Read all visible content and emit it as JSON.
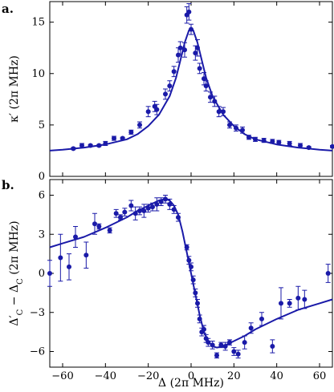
{
  "colors": {
    "data": "#1a1aa8",
    "axes": "#000000"
  },
  "chart_data": [
    {
      "type": "scatter",
      "panel_label": "a.",
      "ylabel": "κ′ (2π MHz)",
      "xlabel": "",
      "xlim": [
        -66,
        66
      ],
      "ylim": [
        0,
        17
      ],
      "yticks": [
        0,
        5,
        10,
        15
      ],
      "xticks": [
        -60,
        -40,
        -20,
        0,
        20,
        40,
        60
      ],
      "show_xtick_labels": false,
      "grid": false,
      "series": [
        {
          "points": [
            [
              -55,
              2.7,
              0.1
            ],
            [
              -51,
              3.0,
              0.2
            ],
            [
              -47,
              3.0,
              0.1
            ],
            [
              -43,
              3.0,
              0.1
            ],
            [
              -40,
              3.2,
              0.2
            ],
            [
              -36,
              3.7,
              0.2
            ],
            [
              -32,
              3.7,
              0.1
            ],
            [
              -28,
              4.3,
              0.2
            ],
            [
              -24,
              5.0,
              0.3
            ],
            [
              -20,
              6.3,
              0.5
            ],
            [
              -17,
              6.8,
              0.5
            ],
            [
              -16,
              6.5,
              0.5
            ],
            [
              -12,
              8.0,
              0.5
            ],
            [
              -10,
              8.8,
              0.5
            ],
            [
              -8,
              10.2,
              0.5
            ],
            [
              -6,
              11.8,
              0.7
            ],
            [
              -5,
              12.5,
              0.6
            ],
            [
              -3,
              12.3,
              0.7
            ],
            [
              -2,
              15.7,
              0.8
            ],
            [
              -1,
              16.0,
              0.8
            ],
            [
              0,
              14.3,
              0.5
            ],
            [
              2,
              12.0,
              0.7
            ],
            [
              3,
              12.5,
              0.8
            ],
            [
              4,
              10.5,
              0.5
            ],
            [
              6,
              9.5,
              0.6
            ],
            [
              7,
              8.8,
              0.5
            ],
            [
              9,
              7.7,
              0.5
            ],
            [
              11,
              7.3,
              0.5
            ],
            [
              13,
              6.3,
              0.5
            ],
            [
              15,
              6.3,
              0.4
            ],
            [
              18,
              5.0,
              0.3
            ],
            [
              21,
              4.7,
              0.3
            ],
            [
              24,
              4.5,
              0.3
            ],
            [
              27,
              3.8,
              0.2
            ],
            [
              30,
              3.6,
              0.2
            ],
            [
              34,
              3.5,
              0.2
            ],
            [
              38,
              3.4,
              0.2
            ],
            [
              41,
              3.3,
              0.2
            ],
            [
              46,
              3.2,
              0.2
            ],
            [
              51,
              3.0,
              0.2
            ],
            [
              55,
              2.8,
              0.1
            ],
            [
              66,
              2.9,
              0.1
            ]
          ]
        },
        {
          "fit_curve": {
            "x": [
              -66,
              -60,
              -50,
              -40,
              -30,
              -25,
              -20,
              -15,
              -10,
              -7,
              -5,
              -3,
              -1,
              0,
              1,
              3,
              5,
              7,
              10,
              15,
              20,
              25,
              30,
              40,
              50,
              60,
              66
            ],
            "y": [
              2.5,
              2.6,
              2.8,
              3.1,
              3.6,
              4.1,
              4.9,
              6.0,
              7.8,
              9.6,
              11.3,
              13.0,
              14.2,
              14.4,
              14.2,
              13.0,
              11.3,
              9.6,
              7.8,
              6.0,
              4.9,
              4.1,
              3.6,
              3.1,
              2.8,
              2.6,
              2.5
            ]
          }
        }
      ]
    },
    {
      "type": "scatter",
      "panel_label": "b.",
      "ylabel": "Δ′C − ΔC (2π MHz)",
      "ylabel_parts": {
        "delta": "Δ",
        "prime": "′",
        "C1": "C",
        "minus": " − ",
        "C2": "C",
        "units": " (2π MHz)"
      },
      "xlabel": "Δ (2π MHz)",
      "xlim": [
        -66,
        66
      ],
      "ylim": [
        -7.2,
        7.2
      ],
      "yticks": [
        -6,
        -3,
        0,
        3,
        6
      ],
      "xticks": [
        -60,
        -40,
        -20,
        0,
        20,
        40,
        60
      ],
      "grid": false,
      "series": [
        {
          "points": [
            [
              -66,
              0.0,
              1.0
            ],
            [
              -61,
              1.2,
              1.8
            ],
            [
              -57,
              0.5,
              1.0
            ],
            [
              -54,
              2.8,
              0.8
            ],
            [
              -49,
              1.4,
              1.0
            ],
            [
              -45,
              3.8,
              0.8
            ],
            [
              -43,
              3.6,
              0.2
            ],
            [
              -38,
              3.3,
              0.2
            ],
            [
              -35,
              4.6,
              0.3
            ],
            [
              -33,
              4.3,
              0.2
            ],
            [
              -31,
              4.7,
              0.3
            ],
            [
              -28,
              5.2,
              0.4
            ],
            [
              -26,
              4.6,
              0.5
            ],
            [
              -24,
              4.8,
              0.3
            ],
            [
              -22,
              4.8,
              0.5
            ],
            [
              -20,
              5.0,
              0.3
            ],
            [
              -18,
              5.1,
              0.3
            ],
            [
              -16,
              5.3,
              0.5
            ],
            [
              -14,
              5.5,
              0.3
            ],
            [
              -12,
              5.7,
              0.3
            ],
            [
              -10,
              5.3,
              0.4
            ],
            [
              -8,
              4.9,
              0.3
            ],
            [
              -6,
              4.3,
              0.3
            ],
            [
              -2,
              2.0,
              0.2
            ],
            [
              -1,
              1.0,
              0.3
            ],
            [
              0,
              0.5,
              0.3
            ],
            [
              1,
              -0.5,
              0.3
            ],
            [
              2,
              -1.5,
              0.3
            ],
            [
              3,
              -2.3,
              0.3
            ],
            [
              4,
              -3.5,
              0.3
            ],
            [
              5,
              -4.5,
              0.3
            ],
            [
              6,
              -4.3,
              0.3
            ],
            [
              7,
              -5.0,
              0.3
            ],
            [
              8,
              -5.3,
              0.3
            ],
            [
              10,
              -5.5,
              0.3
            ],
            [
              12,
              -6.3,
              0.2
            ],
            [
              14,
              -5.5,
              0.2
            ],
            [
              16,
              -5.6,
              0.3
            ],
            [
              18,
              -5.3,
              0.2
            ],
            [
              20,
              -6.0,
              0.3
            ],
            [
              22,
              -6.2,
              0.3
            ],
            [
              25,
              -5.3,
              0.5
            ],
            [
              28,
              -4.2,
              0.4
            ],
            [
              33,
              -3.5,
              0.5
            ],
            [
              38,
              -5.6,
              0.5
            ],
            [
              42,
              -2.3,
              1.2
            ],
            [
              46,
              -2.3,
              0.3
            ],
            [
              50,
              -1.9,
              0.9
            ],
            [
              53,
              -2.0,
              0.7
            ],
            [
              64,
              0.0,
              0.7
            ]
          ]
        },
        {
          "fit_curve": {
            "x": [
              -66,
              -60,
              -50,
              -40,
              -30,
              -25,
              -20,
              -15,
              -12,
              -10,
              -8,
              -6,
              -4,
              -2,
              0,
              2,
              4,
              6,
              8,
              10,
              12,
              15,
              20,
              25,
              30,
              40,
              50,
              60,
              66
            ],
            "y": [
              2.0,
              2.3,
              2.8,
              3.5,
              4.3,
              4.8,
              5.2,
              5.6,
              5.7,
              5.6,
              5.2,
              4.5,
              3.2,
              1.6,
              0.0,
              -1.6,
              -3.2,
              -4.5,
              -5.2,
              -5.6,
              -5.7,
              -5.6,
              -5.2,
              -4.8,
              -4.3,
              -3.5,
              -2.8,
              -2.3,
              -2.0
            ]
          }
        }
      ]
    }
  ]
}
